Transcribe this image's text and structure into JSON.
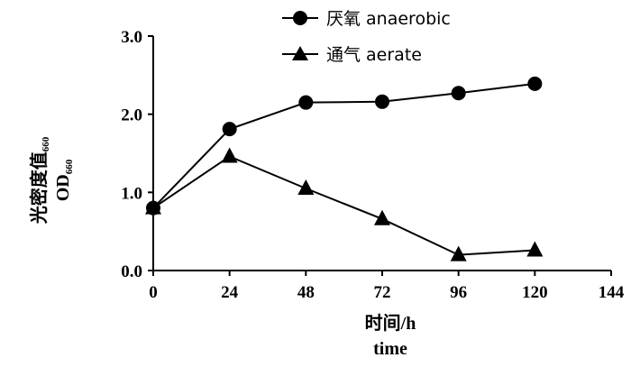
{
  "chart_data": {
    "type": "line",
    "x": [
      0,
      24,
      48,
      72,
      96,
      120
    ],
    "series": [
      {
        "name": "厌氧 anaerobic",
        "marker": "circle",
        "values": [
          0.8,
          1.81,
          2.15,
          2.16,
          2.27,
          2.39
        ]
      },
      {
        "name": "通气 aerate",
        "marker": "triangle",
        "values": [
          0.8,
          1.46,
          1.05,
          0.66,
          0.2,
          0.26
        ]
      }
    ],
    "xlim": [
      0,
      144
    ],
    "ylim": [
      0,
      3
    ],
    "xticks": [
      "0",
      "24",
      "48",
      "72",
      "96",
      "120",
      "144"
    ],
    "yticks": [
      "0.0",
      "1.0",
      "2.0",
      "3.0"
    ],
    "xlabel_line1": "时间/h",
    "xlabel_line2": "time",
    "ylabel_line1_main": "光密度值",
    "ylabel_line1_sub": "660",
    "ylabel_line2_main": "OD",
    "ylabel_line2_sub": "660",
    "legend_placement": "top-center",
    "grid": false,
    "line_color": "#000000"
  }
}
